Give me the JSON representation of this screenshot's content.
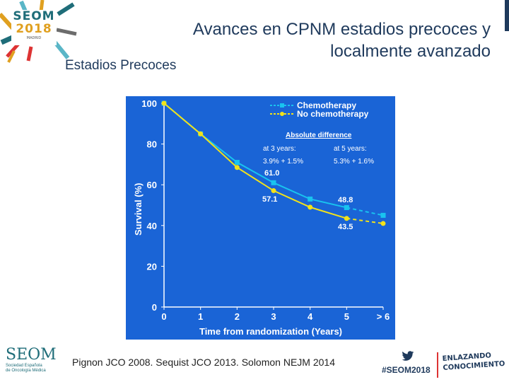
{
  "header": {
    "logo": {
      "line1": "SEOM",
      "line2": "2018",
      "line3": "MADRID"
    },
    "title": "Avances en CPNM estadios precoces y localmente avanzado",
    "subtitle": "Estadios Precoces"
  },
  "colors": {
    "chart_bg": "#1a64d6",
    "chemo": "#19c3ef",
    "no_chemo": "#f2e21a",
    "axis_text": "#ffffff",
    "title_text": "#1f3a5c"
  },
  "chart_data": {
    "type": "line",
    "xlabel": "Time from randomization (Years)",
    "ylabel": "Survival (%)",
    "x_ticks": [
      "0",
      "1",
      "2",
      "3",
      "4",
      "5",
      "> 6"
    ],
    "y_ticks": [
      "0",
      "20",
      "40",
      "60",
      "80",
      "100"
    ],
    "xlim": [
      0,
      6
    ],
    "ylim": [
      0,
      100
    ],
    "series": [
      {
        "name": "Chemotherapy",
        "x": [
          0,
          1,
          2,
          3,
          4,
          5,
          6
        ],
        "values": [
          100,
          85,
          71,
          61,
          53,
          48.8,
          45
        ],
        "dashed_from_x": 5,
        "marker": "square"
      },
      {
        "name": "No chemotherapy",
        "x": [
          0,
          1,
          2,
          3,
          4,
          5,
          6
        ],
        "values": [
          100,
          85,
          68.5,
          57.1,
          49,
          43.5,
          41
        ],
        "dashed_from_x": 5,
        "marker": "circle"
      }
    ],
    "annotations": {
      "abs_diff_title": "Absolute difference",
      "at3_label": "at 3 years:",
      "at5_label": "at 5 years:",
      "at3_value": "3.9% + 1.5%",
      "at5_value": "5.3% + 1.6%",
      "chemo_3y": "61.0",
      "nochemo_3y": "57.1",
      "chemo_5y": "48.8",
      "nochemo_5y": "43.5"
    }
  },
  "footer": {
    "citation": "Pignon JCO 2008. Sequist JCO 2013. Solomon NEJM 2014",
    "hashtag": "#SEOM2018",
    "brand_big": "SEOM",
    "brand_line1": "Sociedad Española",
    "brand_line2": "de Oncología Médica",
    "slogan_line1": "ENLAZANDO",
    "slogan_line2": "CONOCIMIENTO"
  }
}
